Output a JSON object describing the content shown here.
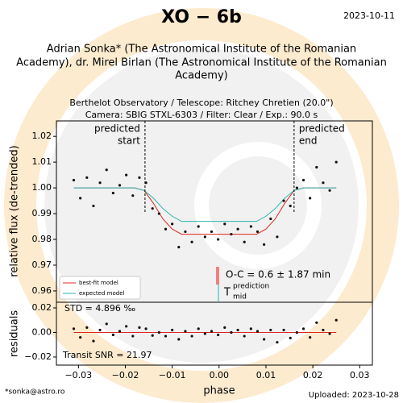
{
  "chart_data": [
    {
      "type": "scatter",
      "title": "XO − 6b",
      "date": "2023-10-11",
      "authors_lines": [
        "Adrian Sonka* (The Astronomical Institute of the Romanian",
        "Academy), dr. Mirel Birlan (The Astronomical Institute of the Romanian",
        "Academy)"
      ],
      "subtitle_lines": [
        "Berthelot Observatory / Telescope: Ritchey Chretien (20.0\")",
        "Camera: SBIG STXL-6303 / Filter: Clear / Exp.: 90.0 s"
      ],
      "ylabel": "relative flux (de-trended)",
      "xlim": [
        -0.0347,
        0.0327
      ],
      "ylim": [
        0.9556,
        1.026
      ],
      "yticks": [
        0.96,
        0.97,
        0.98,
        0.99,
        {
          "value": 1.0,
          "label": "1.00"
        },
        1.01,
        1.02
      ],
      "color": "#111111",
      "x": [
        -0.031,
        -0.0296,
        -0.0282,
        -0.0268,
        -0.0254,
        -0.024,
        -0.0226,
        -0.0212,
        -0.0198,
        -0.0184,
        -0.017,
        -0.0156,
        -0.0142,
        -0.0128,
        -0.0114,
        -0.01,
        -0.0086,
        -0.0072,
        -0.0058,
        -0.0044,
        -0.003,
        -0.0016,
        -0.0002,
        0.0012,
        0.0026,
        0.004,
        0.0054,
        0.0068,
        0.0082,
        0.0096,
        0.011,
        0.0124,
        0.0138,
        0.0152,
        0.0166,
        0.018,
        0.0194,
        0.0208,
        0.0222,
        0.0236,
        0.025
      ],
      "values": [
        1.003,
        0.996,
        1.004,
        0.993,
        1.002,
        1.007,
        0.998,
        1.001,
        1.005,
        0.997,
        1.004,
        1.002,
        0.992,
        0.99,
        0.984,
        0.986,
        0.977,
        0.983,
        0.979,
        0.985,
        0.981,
        0.983,
        0.98,
        0.986,
        0.982,
        0.984,
        0.979,
        0.985,
        0.983,
        0.978,
        0.988,
        0.981,
        0.995,
        0.993,
        1.0,
        1.003,
        0.996,
        1.008,
        1.002,
        0.999,
        1.01
      ],
      "series": [
        {
          "name": "best-fit model",
          "color": "#e0261f",
          "x": [
            -0.031,
            -0.018,
            -0.016,
            -0.014,
            -0.012,
            -0.01,
            -0.008,
            0.008,
            0.01,
            0.012,
            0.014,
            0.016,
            0.018,
            0.025
          ],
          "values": [
            1.0,
            1.0,
            0.999,
            0.994,
            0.988,
            0.984,
            0.982,
            0.982,
            0.984,
            0.988,
            0.994,
            0.999,
            1.0,
            1.0
          ]
        },
        {
          "name": "expected model",
          "color": "#2bb5b0",
          "x": [
            -0.031,
            -0.018,
            -0.016,
            -0.014,
            -0.012,
            -0.01,
            -0.008,
            0.008,
            0.01,
            0.012,
            0.014,
            0.016,
            0.018,
            0.025
          ],
          "values": [
            1.0,
            1.0,
            0.999,
            0.996,
            0.992,
            0.989,
            0.987,
            0.987,
            0.989,
            0.992,
            0.996,
            0.999,
            1.0,
            1.0
          ]
        }
      ],
      "legend": "lower left",
      "annotations": {
        "predicted_start": {
          "x": -0.0158,
          "label_lines": [
            "predicted",
            "start"
          ]
        },
        "predicted_end": {
          "x": 0.016,
          "label_lines": [
            "predicted",
            "end"
          ]
        },
        "oc": "O-C = 0.6 ± 1.87 min",
        "tmid": {
          "base": "T",
          "sup": "prediction",
          "sub": "mid"
        }
      }
    },
    {
      "type": "scatter",
      "ylabel": "residuals",
      "xlabel": "phase",
      "xlim": [
        -0.0347,
        0.0327
      ],
      "ylim": [
        -0.0266,
        0.0246
      ],
      "xticks": [
        {
          "value": -0.03,
          "label": "−0.03"
        },
        {
          "value": -0.02,
          "label": "−0.02"
        },
        {
          "value": -0.01,
          "label": "−0.01"
        },
        {
          "value": 0,
          "label": "0.00"
        },
        {
          "value": 0.01,
          "label": "0.01"
        },
        {
          "value": 0.02,
          "label": "0.02"
        },
        {
          "value": 0.03,
          "label": "0.03"
        }
      ],
      "yticks": [
        {
          "value": -0.02,
          "label": "−0.02"
        },
        {
          "value": 0,
          "label": "0.00"
        },
        {
          "value": 0.02,
          "label": "0.02"
        }
      ],
      "color": "#111111",
      "x": [
        -0.031,
        -0.0296,
        -0.0282,
        -0.0268,
        -0.0254,
        -0.024,
        -0.0226,
        -0.0212,
        -0.0198,
        -0.0184,
        -0.017,
        -0.0156,
        -0.0142,
        -0.0128,
        -0.0114,
        -0.01,
        -0.0086,
        -0.0072,
        -0.0058,
        -0.0044,
        -0.003,
        -0.0016,
        -0.0002,
        0.0012,
        0.0026,
        0.004,
        0.0054,
        0.0068,
        0.0082,
        0.0096,
        0.011,
        0.0124,
        0.0138,
        0.0152,
        0.0166,
        0.018,
        0.0194,
        0.0208,
        0.0222,
        0.0236,
        0.025
      ],
      "values": [
        0.003,
        -0.004,
        0.004,
        -0.007,
        0.002,
        0.007,
        -0.002,
        0.001,
        0.005,
        -0.003,
        0.004,
        0.003,
        -0.0025,
        0,
        -0.003,
        0.002,
        -0.0056,
        0.001,
        -0.003,
        0.003,
        -0.001,
        0.001,
        -0.002,
        0.004,
        0,
        0.002,
        -0.003,
        0.003,
        0.001,
        -0.0056,
        0.002,
        -0.008,
        0.002,
        -0.0045,
        0,
        0.003,
        -0.004,
        0.008,
        0.002,
        -0.001,
        0.01
      ],
      "model": {
        "color": "#e0261f",
        "x": [
          -0.031,
          0.025
        ],
        "values": [
          0,
          0
        ]
      },
      "std_text": "STD = 4.896 ‰",
      "snr_text": "Transit SNR = 21.97"
    }
  ],
  "footer": {
    "email": "*sonka@astro.ro",
    "uploaded": "Uploaded: 2023-10-28"
  }
}
